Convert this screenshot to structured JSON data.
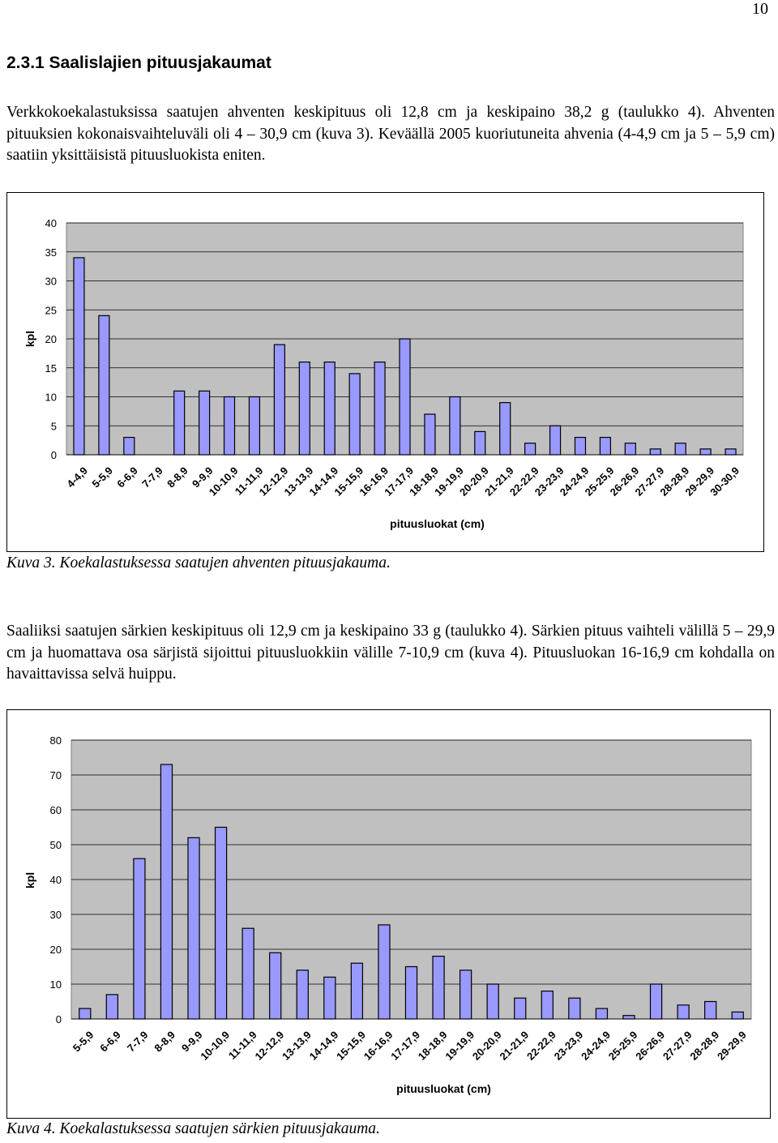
{
  "page_number": "10",
  "section_heading": "2.3.1  Saalislajien pituusjakaumat",
  "paragraph1": "Verkkokoekalastuksissa saatujen ahventen keskipituus oli 12,8 cm ja keskipaino 38,2 g (taulukko 4). Ahventen pituuksien kokonaisvaihteluväli oli 4 – 30,9 cm (kuva 3). Keväällä 2005 kuoriutuneita ahvenia (4-4,9 cm ja 5 – 5,9 cm) saatiin yksittäisistä pituusluokista eniten.",
  "caption1": "Kuva 3. Koekalastuksessa saatujen ahventen pituusjakauma.",
  "paragraph2": "Saaliiksi saatujen särkien keskipituus oli 12,9 cm ja keskipaino 33 g (taulukko 4). Särkien pituus vaihteli välillä 5 – 29,9 cm ja huomattava osa särjistä sijoittui pituusluokkiin välille 7-10,9 cm (kuva 4). Pituusluokan 16-16,9 cm kohdalla on havaittavissa selvä huippu.",
  "caption2": "Kuva 4. Koekalastuksessa saatujen särkien pituusjakauma.",
  "colors": {
    "bar_fill": "#9999ff",
    "bar_stroke": "#000000",
    "plot_bg": "#c0c0c0",
    "grid": "#000000"
  },
  "chart_data": [
    {
      "type": "bar",
      "xlabel": "pituusluokat (cm)",
      "ylabel": "kpl",
      "ylim": [
        0,
        40
      ],
      "yticks": [
        0,
        5,
        10,
        15,
        20,
        25,
        30,
        35,
        40
      ],
      "grid": true,
      "legend": "none",
      "categories": [
        "4-4,9",
        "5-5,9",
        "6-6,9",
        "7-7,9",
        "8-8,9",
        "9-9,9",
        "10-10,9",
        "11-11,9",
        "12-12,9",
        "13-13,9",
        "14-14,9",
        "15-15,9",
        "16-16,9",
        "17-17,9",
        "18-18,9",
        "19-19,9",
        "20-20,9",
        "21-21,9",
        "22-22,9",
        "23-23,9",
        "24-24,9",
        "25-25,9",
        "26-26,9",
        "27-27,9",
        "28-28,9",
        "29-29,9",
        "30-30,9"
      ],
      "values": [
        34,
        24,
        3,
        0,
        11,
        11,
        10,
        10,
        19,
        16,
        16,
        14,
        16,
        20,
        7,
        10,
        4,
        9,
        2,
        5,
        3,
        3,
        2,
        1,
        2,
        1,
        1
      ]
    },
    {
      "type": "bar",
      "xlabel": "pituusluokat (cm)",
      "ylabel": "kpl",
      "ylim": [
        0,
        80
      ],
      "yticks": [
        0,
        10,
        20,
        30,
        40,
        50,
        60,
        70,
        80
      ],
      "grid": true,
      "legend": "none",
      "categories": [
        "5-5,9",
        "6-6,9",
        "7-7,9",
        "8-8,9",
        "9-9,9",
        "10-10,9",
        "11-11,9",
        "12-12,9",
        "13-13,9",
        "14-14,9",
        "15-15,9",
        "16-16,9",
        "17-17,9",
        "18-18,9",
        "19-19,9",
        "20-20,9",
        "21-21,9",
        "22-22,9",
        "23-23,9",
        "24-24,9",
        "25-25,9",
        "26-26,9",
        "27-27,9",
        "28-28,9",
        "29-29,9"
      ],
      "values": [
        3,
        7,
        46,
        73,
        52,
        55,
        26,
        19,
        14,
        12,
        16,
        27,
        15,
        18,
        14,
        10,
        6,
        8,
        6,
        3,
        1,
        10,
        4,
        5,
        2
      ]
    }
  ]
}
